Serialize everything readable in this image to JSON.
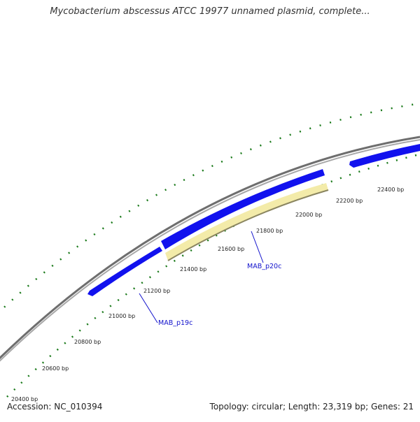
{
  "title": "Mycobacterium abscessus ATCC 19977 unnamed plasmid, complete...",
  "footer": {
    "accession": "Accession: NC_010394",
    "summary": "Topology: circular; Length: 23,319 bp; Genes: 21"
  },
  "ruler": {
    "labels": [
      "20400 bp",
      "20600 bp",
      "20800 bp",
      "21000 bp",
      "21200 bp",
      "21400 bp",
      "21600 bp",
      "21800 bp",
      "22000 bp",
      "22200 bp",
      "22400 bp"
    ]
  },
  "genes": [
    {
      "label": "MAB_p19c"
    },
    {
      "label": "MAB_p20c"
    }
  ],
  "colors": {
    "backbone": "#7a7a7a",
    "gene_fill": "#1111ee",
    "gene_highlight": "#f3eba9",
    "gene_highlight_edge": "#8a8560",
    "tick": "#1a7a1a",
    "gene_label": "#1111cc"
  }
}
